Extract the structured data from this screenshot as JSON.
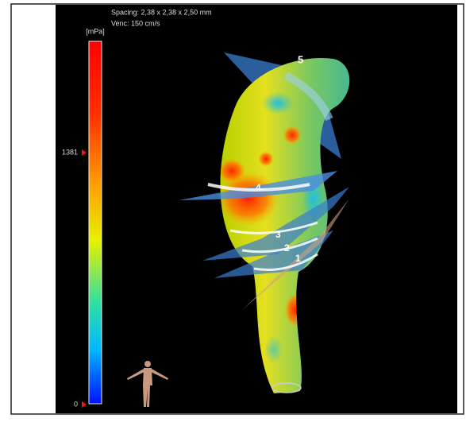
{
  "overlay": {
    "spacing": "Spacing: 2,38 x 2,38 x 2,50 mm",
    "venc": "Venc: 150 cm/s"
  },
  "colorbar": {
    "unit": "[mPa]",
    "ticks": [
      "1381",
      "0"
    ]
  },
  "plane_labels": [
    "1",
    "2",
    "3",
    "4",
    "5"
  ]
}
